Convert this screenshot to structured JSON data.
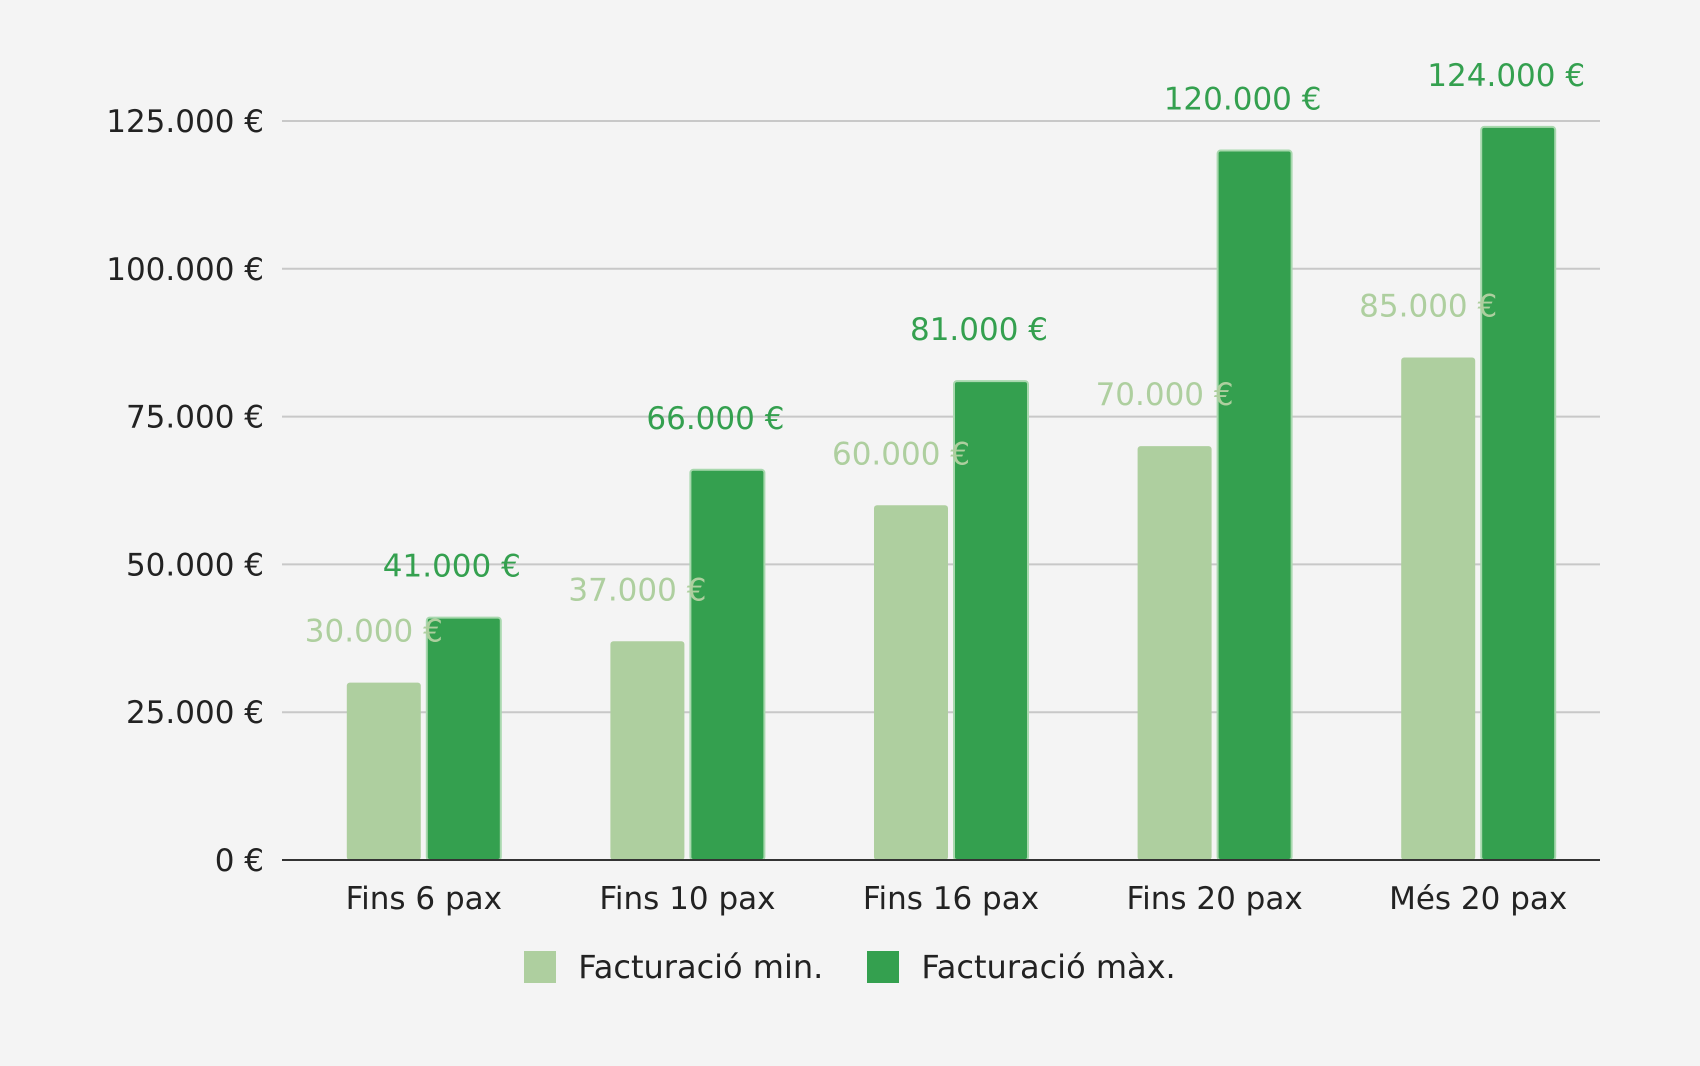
{
  "chart_data": {
    "type": "bar",
    "categories": [
      "Fins 6 pax",
      "Fins 10 pax",
      "Fins 16 pax",
      "Fins 20 pax",
      "Més 20 pax"
    ],
    "series": [
      {
        "name": "Facturació min.",
        "color": "#aecf9f",
        "values": [
          30000,
          37000,
          60000,
          70000,
          85000
        ],
        "labels": [
          "30.000 €",
          "37.000 €",
          "60.000 €",
          "70.000 €",
          "85.000 €"
        ]
      },
      {
        "name": "Facturació màx.",
        "color": "#34a04f",
        "values": [
          41000,
          66000,
          81000,
          120000,
          124000
        ],
        "labels": [
          "41.000 €",
          "66.000 €",
          "81.000 €",
          "120.000 €",
          "124.000 €"
        ]
      }
    ],
    "yticks": [
      0,
      25000,
      50000,
      75000,
      100000,
      125000
    ],
    "ytick_labels": [
      "0 €",
      "25.000 €",
      "50.000 €",
      "75.000 €",
      "100.000 €",
      "125.000 €"
    ],
    "ylim": [
      0,
      125000
    ],
    "title": "",
    "xlabel": "",
    "ylabel": "",
    "grid": true,
    "legend_position": "bottom",
    "colors": {
      "background": "#f4f4f4",
      "grid": "#c8c8c8",
      "axis": "#333333",
      "text": "#222222"
    }
  }
}
